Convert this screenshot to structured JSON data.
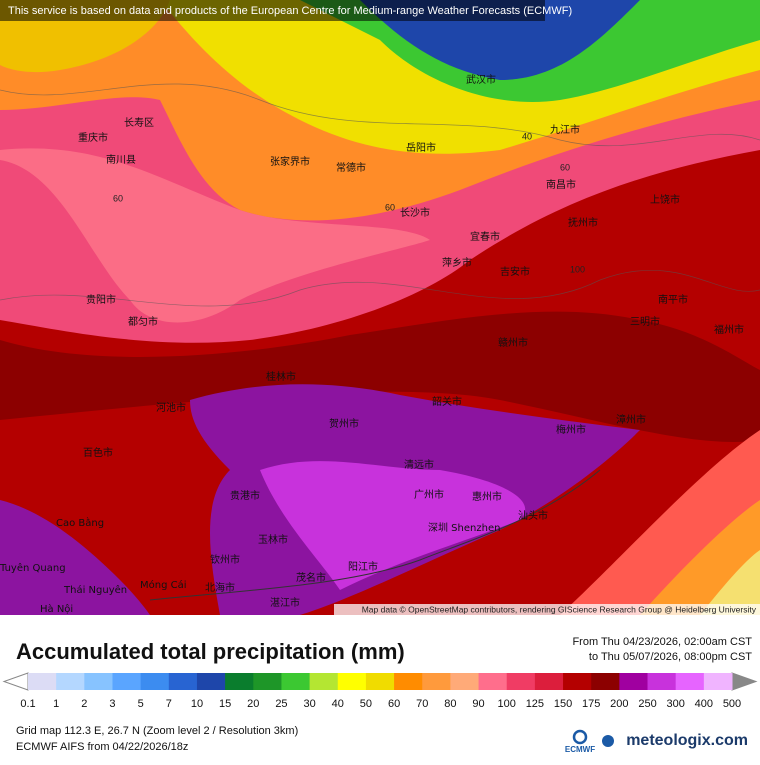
{
  "banner": "This service is based on data and products of the European Centre for Medium-range Weather Forecasts (ECMWF)",
  "cities": [
    "重庆市",
    "长寿区",
    "南川县",
    "张家界市",
    "常德市",
    "岳阳市",
    "武汉市",
    "九江市",
    "南昌市",
    "长沙市",
    "宜春市",
    "萍乡市",
    "吉安市",
    "抚州市",
    "上饶市",
    "贵阳市",
    "都匀市",
    "桂林市",
    "河池市",
    "百色市",
    "贺州市",
    "韶关市",
    "赣州市",
    "梅州市",
    "漳州市",
    "清远市",
    "广州市",
    "惠州市",
    "深圳 Shenzhen",
    "汕头市",
    "贵港市",
    "玉林市",
    "钦州市",
    "北海市",
    "阳江市",
    "茂名市",
    "湛江市",
    "Cao Bằng",
    "Thái Nguyên",
    "Móng Cái",
    "Hà Nội",
    "Tuyên Quang",
    "福州市",
    "南平市",
    "三明市"
  ],
  "contour_labels": [
    "60",
    "60",
    "60",
    "100",
    "40"
  ],
  "attribution": "Map data © OpenStreetMap contributors, rendering GIScience Research Group @ Heidelberg University",
  "legend": {
    "title": "Accumulated total precipitation (mm)",
    "from": "From Thu 04/23/2026, 02:00am CST",
    "to": "to Thu 05/07/2026, 08:00pm CST",
    "labels": [
      "0.1",
      "1",
      "2",
      "3",
      "5",
      "7",
      "10",
      "15",
      "20",
      "25",
      "30",
      "40",
      "50",
      "60",
      "70",
      "80",
      "90",
      "100",
      "125",
      "150",
      "175",
      "200",
      "250",
      "300",
      "400",
      "500"
    ],
    "colors": [
      "#dcdcf5",
      "#b4d7ff",
      "#87c3ff",
      "#5aa5ff",
      "#3c8cf0",
      "#2864d2",
      "#1e46aa",
      "#0a7d2d",
      "#1e9628",
      "#3cc832",
      "#b4e632",
      "#ffff00",
      "#f0dc00",
      "#ff8c00",
      "#ff9a3c",
      "#ffaa78",
      "#ff6e8c",
      "#f03c64",
      "#dc1e3c",
      "#b40000",
      "#8c0000",
      "#a000a0",
      "#c832dc",
      "#e664ff",
      "#f0b4ff"
    ]
  },
  "footer": {
    "grid": "Grid map 112.3 E, 26.7 N (Zoom level 2 / Resolution 3km)",
    "model": "ECMWF AIFS from  04/22/2026/18z",
    "ecmwf": "ECMWF",
    "brand": "meteologix.com"
  }
}
